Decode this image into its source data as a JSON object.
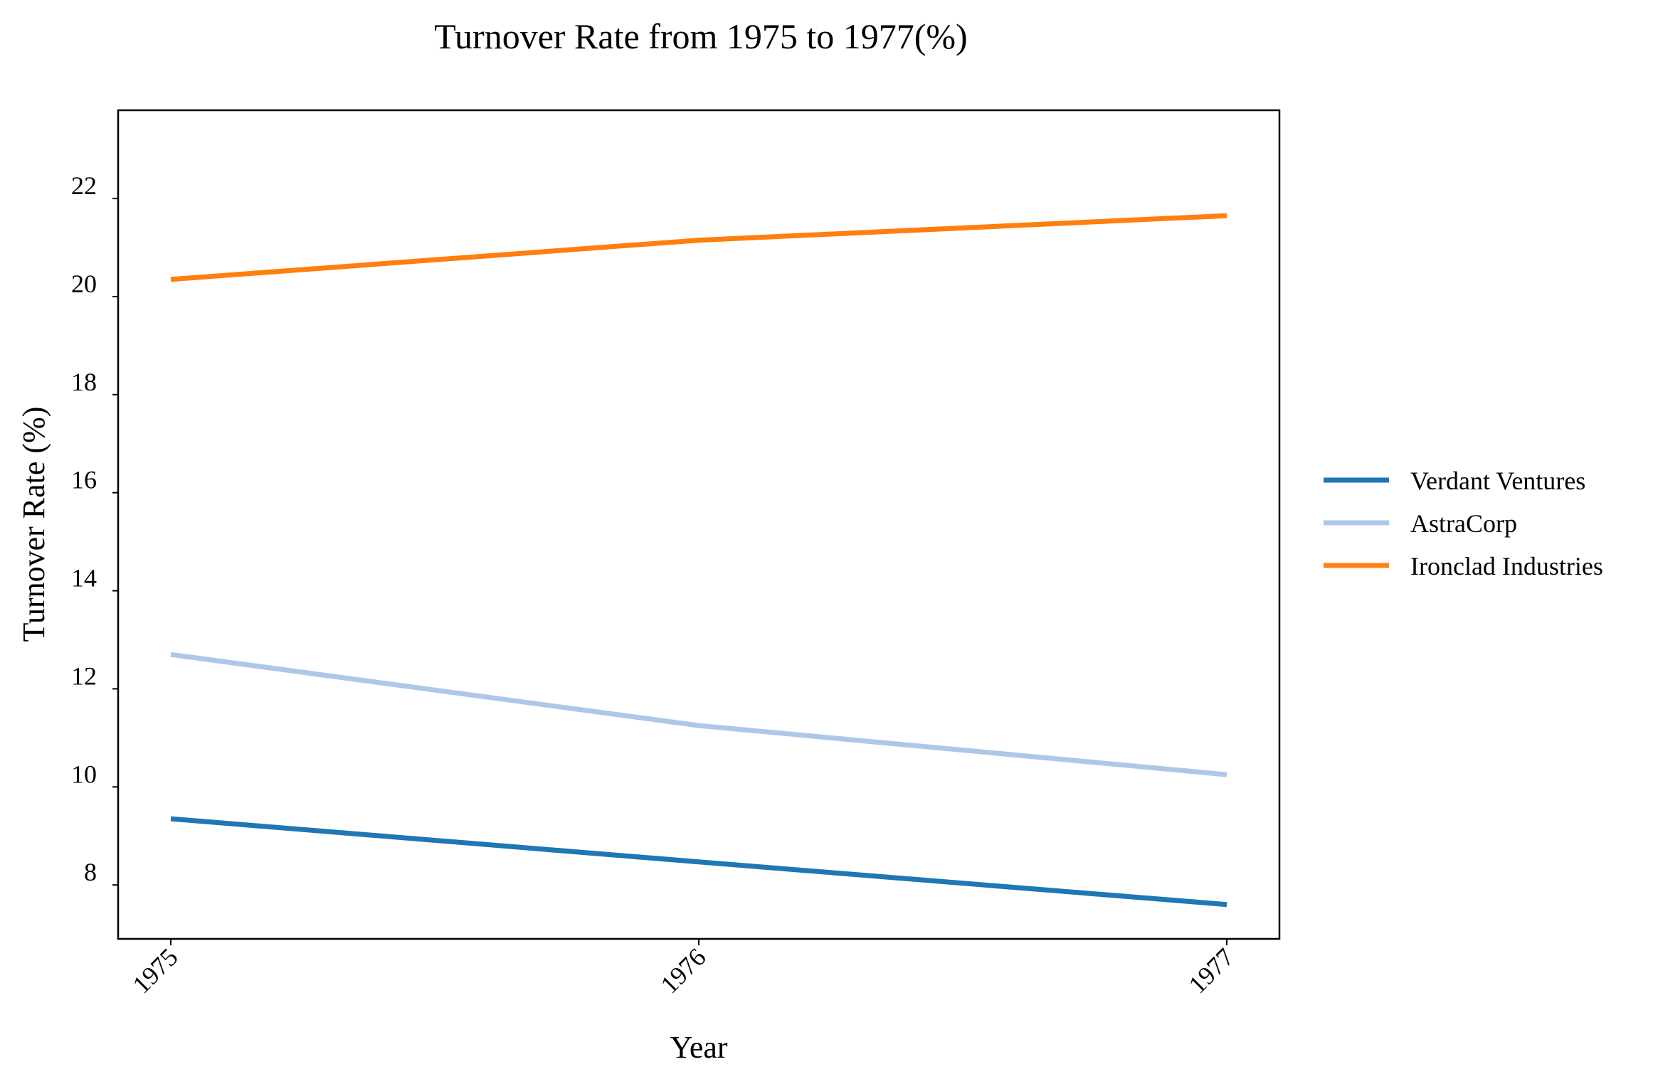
{
  "chart_data": {
    "type": "line",
    "title": "Turnover Rate from 1975 to 1977(%)",
    "xlabel": "Year",
    "ylabel": "Turnover Rate (%)",
    "categories": [
      "1975",
      "1976",
      "1977"
    ],
    "ylim": [
      6.9,
      23.8
    ],
    "yticks": [
      8,
      10,
      12,
      14,
      16,
      18,
      20,
      22
    ],
    "series": [
      {
        "name": "Verdant Ventures",
        "values": [
          9.35,
          8.47,
          7.6
        ],
        "color": "#1f77b4"
      },
      {
        "name": "AstraCorp",
        "values": [
          12.7,
          11.25,
          10.25
        ],
        "color": "#aec7e8"
      },
      {
        "name": "Ironclad Industries",
        "values": [
          20.35,
          21.15,
          21.65
        ],
        "color": "#ff7f0e"
      }
    ],
    "grid": false,
    "legend_position": "right"
  }
}
